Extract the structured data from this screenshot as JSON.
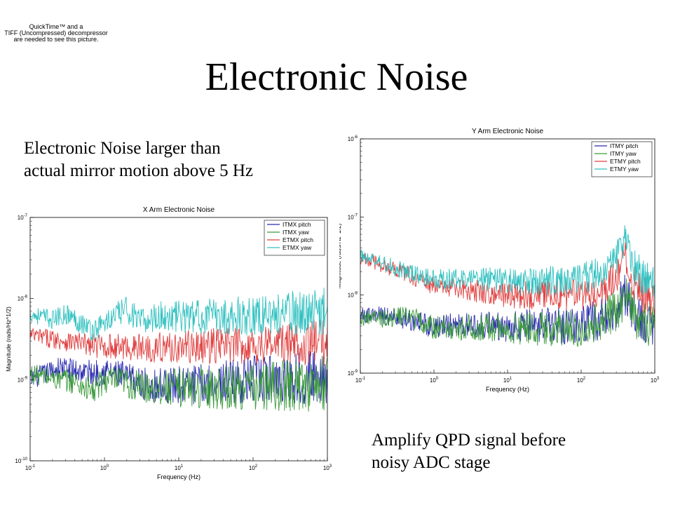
{
  "quicktime_notice": {
    "lines": [
      "QuickTime™ and a",
      "TIFF (Uncompressed) decompressor",
      "are needed to see this picture."
    ]
  },
  "slide": {
    "title": "Electronic Noise",
    "note_left": [
      "Electronic Noise larger than",
      "actual mirror motion above 5 Hz"
    ],
    "note_right": [
      "Amplify  QPD signal before",
      "noisy ADC stage"
    ]
  },
  "chart_data": [
    {
      "id": "x-arm",
      "type": "line",
      "title": "X Arm Electronic Noise",
      "xlabel": "Frequency (Hz)",
      "ylabel": "Magnitude (rads/Hz^1/2)",
      "xscale": "log",
      "yscale": "log",
      "xlim": [
        0.1,
        1000
      ],
      "ylim": [
        1e-10,
        1e-07
      ],
      "x_ticks": [
        {
          "base": "10",
          "exp": "-1"
        },
        {
          "base": "10",
          "exp": "0"
        },
        {
          "base": "10",
          "exp": "1"
        },
        {
          "base": "10",
          "exp": "2"
        },
        {
          "base": "10",
          "exp": "3"
        }
      ],
      "y_ticks": [
        {
          "base": "10",
          "exp": "-7"
        },
        {
          "base": "10",
          "exp": "-8"
        },
        {
          "base": "10",
          "exp": "-9"
        },
        {
          "base": "10",
          "exp": "-10"
        }
      ],
      "grid": false,
      "legend_position": "top-right",
      "series": [
        {
          "name": "ITMX pitch",
          "color": "#2b2bb0",
          "x": [
            0.1,
            0.15,
            0.25,
            0.4,
            0.7,
            1,
            2,
            3,
            5,
            10,
            30,
            100,
            300,
            1000
          ],
          "y": [
            1e-09,
            1.15e-09,
            1.4e-09,
            1.3e-09,
            1.2e-09,
            1.3e-09,
            1.05e-09,
            9e-10,
            8.5e-10,
            8.5e-10,
            9e-10,
            1e-09,
            1.05e-09,
            1.1e-09
          ],
          "jitter": 0.35
        },
        {
          "name": "ITMX yaw",
          "color": "#3a9a3a",
          "x": [
            0.1,
            0.15,
            0.25,
            0.4,
            0.7,
            1,
            2,
            3,
            5,
            10,
            30,
            100,
            300,
            1000
          ],
          "y": [
            1.2e-09,
            1.1e-09,
            1e-09,
            9.5e-10,
            7e-10,
            1e-09,
            9e-10,
            8e-10,
            8e-10,
            8e-10,
            8e-10,
            8e-10,
            8.5e-10,
            9e-10
          ],
          "jitter": 0.35
        },
        {
          "name": "ETMX pitch",
          "color": "#e04040",
          "x": [
            0.1,
            0.2,
            0.4,
            0.7,
            1,
            2,
            5,
            10,
            30,
            100,
            300,
            1000
          ],
          "y": [
            3.5e-09,
            3.2e-09,
            2.9e-09,
            2.6e-09,
            2.6e-09,
            2.5e-09,
            2.5e-09,
            2.5e-09,
            2.6e-09,
            2.7e-09,
            2.8e-09,
            2.9e-09
          ],
          "jitter": 0.3
        },
        {
          "name": "ETMX yaw",
          "color": "#30c0c0",
          "x": [
            0.1,
            0.2,
            0.3,
            0.5,
            0.7,
            1,
            2,
            3,
            5,
            10,
            30,
            100,
            300,
            1000
          ],
          "y": [
            6.5e-09,
            5.5e-09,
            6.5e-09,
            5e-09,
            4e-09,
            5e-09,
            7.5e-09,
            5e-09,
            6e-09,
            6e-09,
            6e-09,
            6.2e-09,
            6.5e-09,
            7e-09
          ],
          "jitter": 0.3
        }
      ]
    },
    {
      "id": "y-arm",
      "type": "line",
      "title": "Y Arm Electronic Noise",
      "xlabel": "Frequency (Hz)",
      "ylabel": "Magnitude (rads/Hz^1/2)",
      "xscale": "log",
      "yscale": "log",
      "xlim": [
        0.1,
        1000
      ],
      "ylim": [
        1e-09,
        1e-06
      ],
      "x_ticks": [
        {
          "base": "10",
          "exp": "-1"
        },
        {
          "base": "10",
          "exp": "0"
        },
        {
          "base": "10",
          "exp": "1"
        },
        {
          "base": "10",
          "exp": "2"
        },
        {
          "base": "10",
          "exp": "3"
        }
      ],
      "y_ticks": [
        {
          "base": "10",
          "exp": "-6"
        },
        {
          "base": "10",
          "exp": "-7"
        },
        {
          "base": "10",
          "exp": "-8"
        },
        {
          "base": "10",
          "exp": "-9"
        }
      ],
      "grid": false,
      "legend_position": "top-right",
      "series": [
        {
          "name": "ITMY pitch",
          "color": "#2b2bb0",
          "x": [
            0.1,
            0.2,
            0.4,
            0.6,
            1,
            2,
            5,
            10,
            30,
            100,
            200,
            300,
            400,
            500,
            700,
            1000
          ],
          "y": [
            5.5e-09,
            5.5e-09,
            5e-09,
            4.5e-09,
            4e-09,
            4e-09,
            4e-09,
            4e-09,
            4e-09,
            4.2e-09,
            5e-09,
            7e-09,
            1e-08,
            7e-09,
            4.5e-09,
            4.5e-09
          ],
          "jitter": 0.3
        },
        {
          "name": "ITMY yaw",
          "color": "#3a9a3a",
          "x": [
            0.1,
            0.2,
            0.4,
            0.6,
            1,
            2,
            5,
            10,
            30,
            100,
            200,
            300,
            400,
            500,
            700,
            1000
          ],
          "y": [
            5.2e-09,
            5e-09,
            5.5e-09,
            4.8e-09,
            3.8e-09,
            3.8e-09,
            3.8e-09,
            3.7e-09,
            3.7e-09,
            3.8e-09,
            4.8e-09,
            6.5e-09,
            9.5e-09,
            6e-09,
            4e-09,
            4e-09
          ],
          "jitter": 0.3
        },
        {
          "name": "ETMY pitch",
          "color": "#e04040",
          "x": [
            0.1,
            0.2,
            0.4,
            0.7,
            1,
            2,
            5,
            10,
            30,
            100,
            200,
            300,
            400,
            500,
            700,
            1000
          ],
          "y": [
            3e-08,
            2.4e-08,
            1.9e-08,
            1.5e-08,
            1.3e-08,
            1.2e-08,
            1.1e-08,
            1e-08,
            1e-08,
            1e-08,
            1.2e-08,
            1.8e-08,
            3e-08,
            1.5e-08,
            1e-08,
            9e-09
          ],
          "jitter": 0.25
        },
        {
          "name": "ETMY yaw",
          "color": "#30c0c0",
          "x": [
            0.1,
            0.2,
            0.4,
            0.7,
            1,
            2,
            5,
            10,
            30,
            100,
            200,
            300,
            400,
            500,
            700,
            1000
          ],
          "y": [
            3.2e-08,
            2.6e-08,
            2e-08,
            1.7e-08,
            1.6e-08,
            1.6e-08,
            1.6e-08,
            1.5e-08,
            1.5e-08,
            1.6e-08,
            2e-08,
            3e-08,
            5e-08,
            2.5e-08,
            1.6e-08,
            1.5e-08
          ],
          "jitter": 0.25
        }
      ]
    }
  ]
}
